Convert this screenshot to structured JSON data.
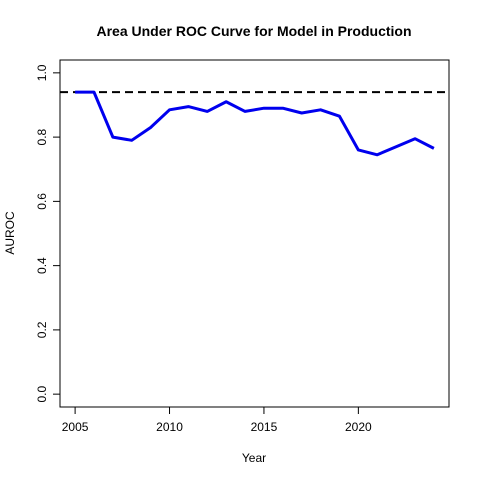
{
  "chart_data": {
    "type": "line",
    "title": "Area Under ROC Curve for Model in Production",
    "xlabel": "Year",
    "ylabel": "AUROC",
    "xlim": [
      2004.2,
      2024.8
    ],
    "ylim": [
      -0.04,
      1.04
    ],
    "x_ticks": [
      2005,
      2010,
      2015,
      2020
    ],
    "y_ticks": [
      0.0,
      0.2,
      0.4,
      0.6,
      0.8,
      1.0
    ],
    "y_tick_labels": [
      "0.0",
      "0.2",
      "0.4",
      "0.6",
      "0.8",
      "1.0"
    ],
    "grid": false,
    "series": [
      {
        "color": "#0000ee",
        "x": [
          2005,
          2006,
          2007,
          2008,
          2009,
          2010,
          2011,
          2012,
          2013,
          2014,
          2015,
          2016,
          2017,
          2018,
          2019,
          2020,
          2021,
          2022,
          2023,
          2024
        ],
        "y": [
          0.94,
          0.94,
          0.8,
          0.79,
          0.83,
          0.885,
          0.895,
          0.88,
          0.91,
          0.88,
          0.89,
          0.89,
          0.875,
          0.885,
          0.865,
          0.76,
          0.745,
          0.77,
          0.795,
          0.765
        ]
      }
    ],
    "reference_line": {
      "y": 0.94,
      "style": "dashed",
      "color": "#000000"
    }
  }
}
